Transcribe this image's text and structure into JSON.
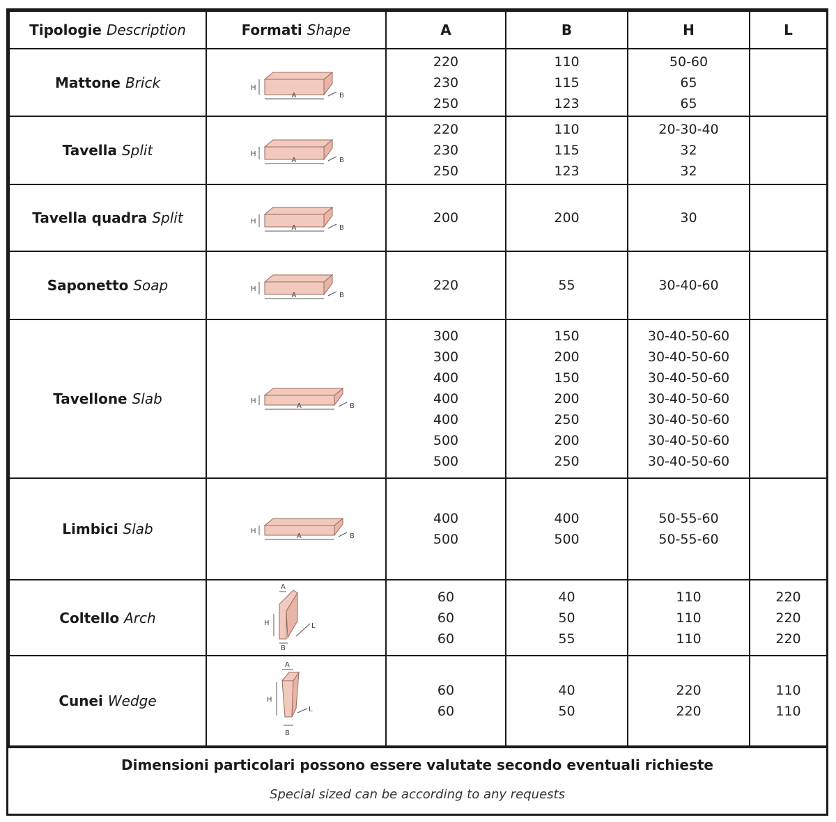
{
  "header": {
    "description_it": "Tipologie",
    "description_en": "Description",
    "shape_it": "Formati",
    "shape_en": "Shape",
    "col_a": "A",
    "col_b": "B",
    "col_h": "H",
    "col_l": "L"
  },
  "rows": [
    {
      "name_it": "Mattone",
      "name_en": "Brick",
      "A": [
        "220",
        "230",
        "250"
      ],
      "B": [
        "110",
        "115",
        "123"
      ],
      "H": [
        "50-60",
        "65",
        "65"
      ],
      "L": []
    },
    {
      "name_it": "Tavella",
      "name_en": "Split",
      "A": [
        "220",
        "230",
        "250"
      ],
      "B": [
        "110",
        "115",
        "123"
      ],
      "H": [
        "20-30-40",
        "32",
        "32"
      ],
      "L": []
    },
    {
      "name_it": "Tavella quadra",
      "name_en": "Split",
      "A": [
        "200"
      ],
      "B": [
        "200"
      ],
      "H": [
        "30"
      ],
      "L": []
    },
    {
      "name_it": "Saponetto",
      "name_en": "Soap",
      "A": [
        "220"
      ],
      "B": [
        "55"
      ],
      "H": [
        "30-40-60"
      ],
      "L": []
    },
    {
      "name_it": "Tavellone",
      "name_en": "Slab",
      "A": [
        "300",
        "300",
        "400",
        "400",
        "400",
        "500",
        "500"
      ],
      "B": [
        "150",
        "200",
        "150",
        "200",
        "250",
        "200",
        "250"
      ],
      "H": [
        "30-40-50-60",
        "30-40-50-60",
        "30-40-50-60",
        "30-40-50-60",
        "30-40-50-60",
        "30-40-50-60",
        "30-40-50-60"
      ],
      "L": []
    },
    {
      "name_it": "Limbici",
      "name_en": "Slab",
      "A": [
        "400",
        "500"
      ],
      "B": [
        "400",
        "500"
      ],
      "H": [
        "50-55-60",
        "50-55-60"
      ],
      "L": []
    },
    {
      "name_it": "Coltello",
      "name_en": "Arch",
      "A": [
        "60",
        "60",
        "60"
      ],
      "B": [
        "40",
        "50",
        "55"
      ],
      "H": [
        "110",
        "110",
        "110"
      ],
      "L": [
        "220",
        "220",
        "220"
      ]
    },
    {
      "name_it": "Cunei",
      "name_en": "Wedge",
      "A": [
        "60",
        "60"
      ],
      "B": [
        "40",
        "50"
      ],
      "H": [
        "220",
        "220"
      ],
      "L": [
        "110",
        "110"
      ]
    }
  ],
  "diagram_labels": {
    "h": "H",
    "a": "A",
    "b": "B",
    "l": "L"
  },
  "footer": {
    "note_it": "Dimensioni particolari possono essere valutate secondo eventuali richieste",
    "note_en": "Special sized can be according to any requests"
  },
  "colors": {
    "brick_fill": "#f2c9bd",
    "brick_stroke": "#9a6a5e",
    "line": "#1a1a1a"
  }
}
